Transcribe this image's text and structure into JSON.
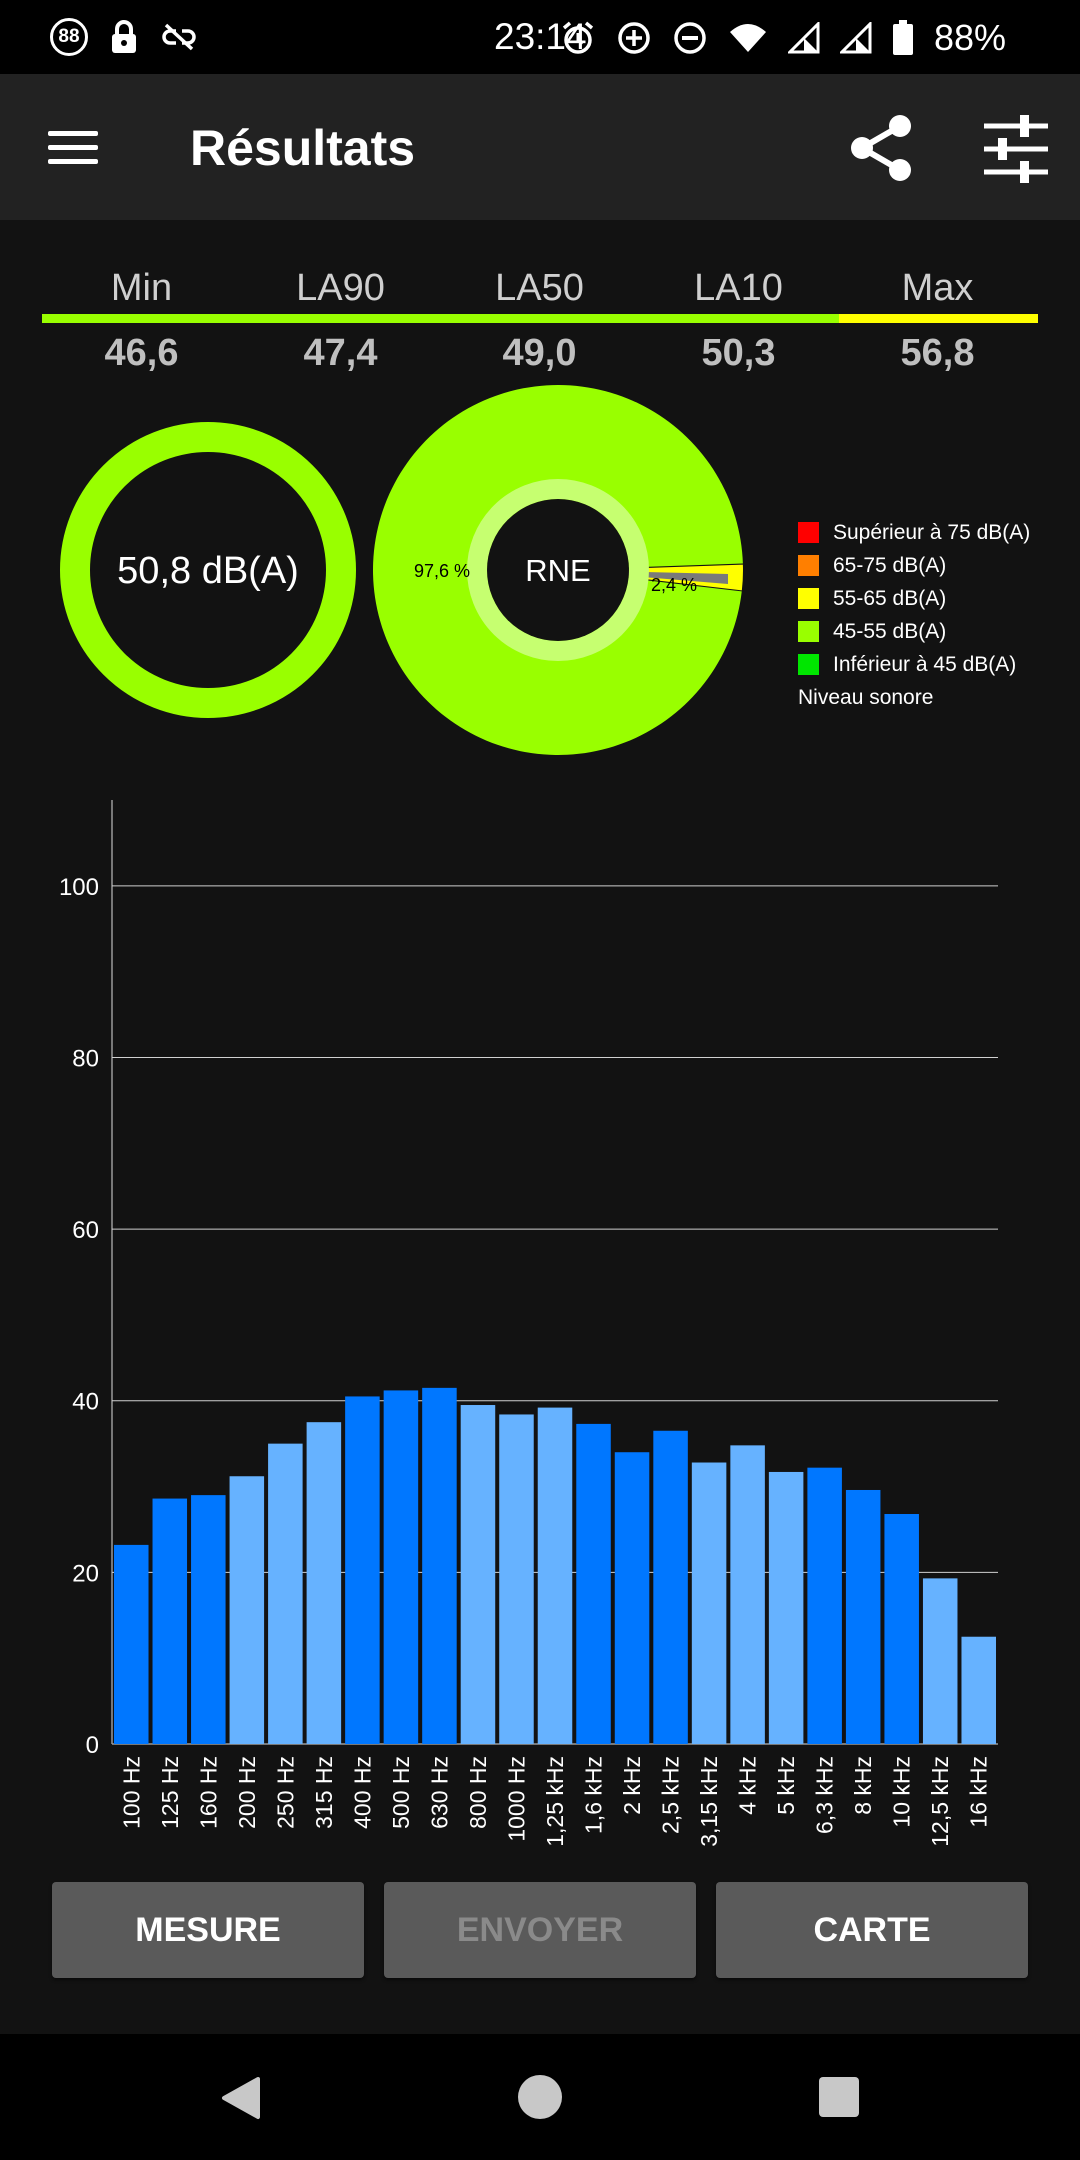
{
  "status_bar": {
    "badge": "88",
    "time": "23:14",
    "battery_percent": "88%",
    "icons_left": [
      "speed-badge-icon",
      "lock-icon",
      "link-off-icon"
    ],
    "icons_right": [
      "alarm-icon",
      "data-saver-icon",
      "do-not-disturb-icon",
      "wifi-icon",
      "signal-icon",
      "signal-icon",
      "battery-icon"
    ]
  },
  "app_bar": {
    "title": "Résultats",
    "menu_icon": "menu-icon",
    "share_icon": "share-icon",
    "settings_icon": "tune-icon"
  },
  "stats": [
    {
      "label": "Min",
      "value": "46,6",
      "color": "#99ff00"
    },
    {
      "label": "LA90",
      "value": "47,4",
      "color": "#99ff00"
    },
    {
      "label": "LA50",
      "value": "49,0",
      "color": "#99ff00"
    },
    {
      "label": "LA10",
      "value": "50,3",
      "color": "#99ff00"
    },
    {
      "label": "Max",
      "value": "56,8",
      "color": "#ffff00"
    }
  ],
  "level_donut": {
    "label": "50,8 dB(A)",
    "color": "#99ff00"
  },
  "rne_donut": {
    "center_label": "RNE",
    "slices": [
      {
        "label": "97,6 %",
        "value": 97.6,
        "color": "#99ff00"
      },
      {
        "label": "2,4 %",
        "value": 2.4,
        "color": "#ffff00"
      }
    ]
  },
  "legend": {
    "items": [
      {
        "label": "Supérieur à 75 dB(A)",
        "color": "#ff0000"
      },
      {
        "label": "65-75 dB(A)",
        "color": "#ff7f00"
      },
      {
        "label": "55-65 dB(A)",
        "color": "#ffff00"
      },
      {
        "label": "45-55 dB(A)",
        "color": "#99ff00"
      },
      {
        "label": "Inférieur à 45 dB(A)",
        "color": "#00e600"
      }
    ],
    "title": "Niveau sonore"
  },
  "chart_data": {
    "type": "bar",
    "categories": [
      "100 Hz",
      "125 Hz",
      "160 Hz",
      "200 Hz",
      "250 Hz",
      "315 Hz",
      "400 Hz",
      "500 Hz",
      "630 Hz",
      "800 Hz",
      "1000 Hz",
      "1,25 kHz",
      "1,6 kHz",
      "2 kHz",
      "2,5 kHz",
      "3,15 kHz",
      "4 kHz",
      "5 kHz",
      "6,3 kHz",
      "8 kHz",
      "10 kHz",
      "12,5 kHz",
      "16 kHz"
    ],
    "values": [
      23.2,
      28.6,
      29.0,
      31.2,
      35.0,
      37.5,
      40.5,
      41.2,
      41.5,
      39.5,
      38.4,
      39.2,
      37.3,
      34.0,
      36.5,
      32.8,
      34.8,
      31.7,
      32.2,
      29.6,
      26.8,
      19.3,
      12.5
    ],
    "bar_colors": [
      "#0077ff",
      "#0077ff",
      "#0077ff",
      "#66b2ff",
      "#66b2ff",
      "#66b2ff",
      "#0077ff",
      "#0077ff",
      "#0077ff",
      "#66b2ff",
      "#66b2ff",
      "#66b2ff",
      "#0077ff",
      "#0077ff",
      "#0077ff",
      "#66b2ff",
      "#66b2ff",
      "#66b2ff",
      "#0077ff",
      "#0077ff",
      "#0077ff",
      "#66b2ff",
      "#66b2ff"
    ],
    "yticks": [
      0,
      20,
      40,
      60,
      80,
      100
    ],
    "ylim": [
      0,
      110
    ],
    "title": "",
    "xlabel": "",
    "ylabel": "",
    "grid": true
  },
  "buttons": {
    "measure": "MESURE",
    "send": "ENVOYER",
    "map": "CARTE"
  },
  "nav_bar": {
    "back_icon": "back-icon",
    "home_icon": "home-icon",
    "recents_icon": "recents-icon"
  }
}
